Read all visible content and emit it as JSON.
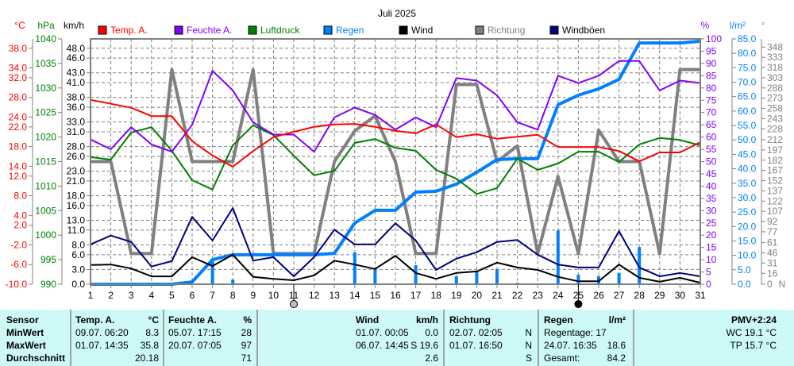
{
  "chart_data": {
    "type": "line",
    "title": "Juli 2025",
    "x": [
      1,
      2,
      3,
      4,
      5,
      6,
      7,
      8,
      9,
      10,
      11,
      12,
      13,
      14,
      15,
      16,
      17,
      18,
      19,
      20,
      21,
      22,
      23,
      24,
      25,
      26,
      27,
      28,
      29,
      30,
      31
    ],
    "axes": {
      "temp": {
        "unit": "°C",
        "range": [
          -10,
          39.9
        ],
        "ticks": [
          "38.0",
          "34.0",
          "32.0",
          "28.0",
          "24.0",
          "22.0",
          "18.0",
          "14.0",
          "12.0",
          "8.0",
          "4.0",
          "2.0",
          "-2.0",
          "-6.0",
          "-10.0"
        ],
        "color": "#ff0000"
      },
      "pressure": {
        "unit": "hPa",
        "range": [
          990,
          1040
        ],
        "ticks": [
          "1040",
          "1035",
          "1030",
          "1025",
          "1020",
          "1015",
          "1010",
          "1005",
          "1000",
          "995",
          "990"
        ],
        "color": "#008000"
      },
      "wind": {
        "unit": "km/h",
        "range": [
          0,
          49.9
        ],
        "ticks": [
          "48.0",
          "46.0",
          "43.0",
          "41.0",
          "38.0",
          "36.0",
          "33.0",
          "31.0",
          "28.0",
          "26.0",
          "23.0",
          "21.0",
          "18.0",
          "16.0",
          "13.0",
          "11.0",
          "8.0",
          "6.0",
          "3.0",
          "0.0"
        ],
        "color": "#000000"
      },
      "humidity": {
        "unit": "%",
        "range": [
          0,
          100
        ],
        "ticks": [
          "100",
          "95",
          "90",
          "85",
          "80",
          "75",
          "70",
          "65",
          "60",
          "55",
          "50",
          "45",
          "40",
          "35",
          "30",
          "25",
          "20",
          "15",
          "10",
          "5",
          "0"
        ],
        "color": "#8000ff"
      },
      "rain": {
        "unit": "l/m²",
        "range": [
          0,
          85
        ],
        "ticks": [
          "85.0",
          "80.0",
          "75.0",
          "70.0",
          "65.0",
          "60.0",
          "55.0",
          "50.0",
          "45.0",
          "40.0",
          "35.0",
          "30.0",
          "25.0",
          "20.0",
          "15.0",
          "10.0",
          "5.0",
          "0.0"
        ],
        "color": "#0080ff"
      },
      "direction": {
        "unit": "°",
        "range": [
          0,
          360
        ],
        "ticks": [
          "348",
          "333",
          "318",
          "303",
          "288",
          "273",
          "258",
          "243",
          "228",
          "212",
          "197",
          "182",
          "167",
          "152",
          "137",
          "122",
          "107",
          "92",
          "77",
          "61",
          "46",
          "31",
          "16",
          "0"
        ],
        "extra_label": "N",
        "color": "#808080"
      }
    },
    "series": [
      {
        "name": "Temp. A.",
        "axis": "temp",
        "color": "#ff0000",
        "width": 2,
        "values": [
          27.5,
          26.7,
          25.9,
          24.2,
          24.2,
          19.1,
          16.2,
          13.9,
          17.1,
          19.9,
          21.0,
          22.0,
          22.5,
          22.6,
          22.0,
          21.2,
          20.7,
          22.5,
          19.9,
          20.5,
          19.6,
          20.0,
          20.4,
          17.9,
          17.9,
          17.9,
          17.1,
          15.0,
          16.8,
          16.8,
          18.9
        ]
      },
      {
        "name": "Feuchte A.",
        "axis": "humidity",
        "color": "#8000ff",
        "width": 2,
        "values": [
          59,
          55,
          64,
          57,
          54,
          65,
          87,
          79,
          66,
          61,
          61,
          54,
          68,
          72,
          69,
          63,
          68,
          64,
          84,
          83,
          77,
          66,
          63,
          85,
          82,
          85,
          91,
          91,
          79,
          83,
          82
        ]
      },
      {
        "name": "Luftdruck",
        "axis": "pressure",
        "color": "#008000",
        "width": 2,
        "values": [
          1015.9,
          1015.4,
          1020.9,
          1022.0,
          1017.2,
          1011.2,
          1009.3,
          1018.3,
          1022.4,
          1020.4,
          1016.2,
          1012.2,
          1013.1,
          1018.8,
          1019.6,
          1017.8,
          1017.2,
          1013.3,
          1011.5,
          1008.4,
          1009.6,
          1015.6,
          1013.3,
          1014.6,
          1017.0,
          1017.0,
          1014.9,
          1018.5,
          1019.8,
          1019.4,
          1018.3
        ]
      },
      {
        "name": "Regen",
        "axis": "rain",
        "color": "#0080ff",
        "width": 4,
        "values": [
          0,
          0,
          0,
          0,
          0,
          0.8,
          8.5,
          10.2,
          10.2,
          10.2,
          10.2,
          10.2,
          10.7,
          21.2,
          25.6,
          25.6,
          31.9,
          32.2,
          34.7,
          38.8,
          43.2,
          43.5,
          43.5,
          62.2,
          65.5,
          67.7,
          71.0,
          83.6,
          83.6,
          83.6,
          84.2
        ]
      },
      {
        "name": "Wind",
        "axis": "wind",
        "color": "#000000",
        "width": 2,
        "values": [
          3.9,
          4.0,
          3.2,
          1.6,
          1.6,
          5.5,
          3.7,
          6.0,
          1.5,
          1.1,
          0.8,
          1.8,
          4.8,
          4.0,
          3.1,
          5.8,
          2.3,
          1.1,
          2.3,
          2.6,
          4.4,
          3.4,
          2.9,
          1.5,
          0.6,
          0.6,
          4.0,
          1.3,
          0.5,
          1.3,
          0.3
        ]
      },
      {
        "name": "Richtung",
        "axis": "direction",
        "color": "#808080",
        "width": 4,
        "values": [
          180,
          180,
          45,
          45,
          315,
          180,
          180,
          180,
          315,
          45,
          45,
          45,
          180,
          225,
          247,
          180,
          45,
          45,
          293,
          293,
          180,
          203,
          45,
          158,
          45,
          226,
          180,
          180,
          45,
          315,
          315
        ]
      },
      {
        "name": "Windböen",
        "axis": "wind",
        "color": "#000080",
        "width": 2,
        "values": [
          8.1,
          9.9,
          8.6,
          3.6,
          4.7,
          13.7,
          8.9,
          15.5,
          4.8,
          5.5,
          1.6,
          5.5,
          11.1,
          8.1,
          8.1,
          12.4,
          8.9,
          2.9,
          5.2,
          6.5,
          8.6,
          9.0,
          6.0,
          4.0,
          3.4,
          3.4,
          10.8,
          3.4,
          1.6,
          2.3,
          1.6
        ]
      }
    ],
    "rain_bars": {
      "name": "Regen (täglich)",
      "axis": "rain",
      "color": "#0080ff",
      "days": [
        7,
        8,
        14,
        15,
        17,
        19,
        20,
        21,
        22,
        24,
        25,
        26,
        27,
        28
      ],
      "values": [
        8.8,
        1.6,
        11.0,
        5.2,
        6.6,
        2.8,
        4.7,
        5.2,
        0.5,
        18.6,
        3.3,
        2.8,
        3.9,
        12.9
      ]
    },
    "moon_phases": [
      {
        "day": 11,
        "phase": "full-moon"
      },
      {
        "day": 25,
        "phase": "new-moon"
      }
    ],
    "legend": [
      "Temp. A.",
      "Feuchte A.",
      "Luftdruck",
      "Regen",
      "Wind",
      "Richtung",
      "Windböen"
    ],
    "legend_placement": "top",
    "grid": true
  },
  "table": {
    "sensor": {
      "header": "Sensor",
      "rows": [
        "MinWert",
        "MaxWert",
        "Durchschnitt"
      ]
    },
    "temp": {
      "header": "Temp. A.",
      "unit": "°C",
      "min_time": "09.07.  06:20",
      "min": "8.3",
      "max_time": "01.07.  14:35",
      "max": "35.8",
      "avg": "20.18"
    },
    "humidity": {
      "header": "Feuchte A.",
      "unit": "%",
      "min_time": "05.07.  17:15",
      "min": "28",
      "max_time": "20.07.  07:05",
      "max": "97",
      "avg": "71"
    },
    "wind": {
      "header": "Wind",
      "unit": "km/h",
      "min_time": "01.07.  00:05",
      "min": "0.0",
      "max_time": "06.07.  14:45",
      "max": "S 19.6",
      "avg": "2.6"
    },
    "direction": {
      "header": "Richtung",
      "min_time": "02.07.  02:05",
      "min": "N",
      "max_time": "01.07.  16:50",
      "max": "N",
      "avg": "S"
    },
    "rain": {
      "header": "Regen",
      "unit": "l/m²",
      "days": "Regentage: 17",
      "max_time": "24.07.  16:35",
      "max": "18.6",
      "total_label": "Gesamt:",
      "total": "84.2"
    },
    "extra": {
      "pmv": "PMV+2:24",
      "wc": "WC 19.1 °C",
      "tp": "TP 15.7 °C"
    }
  }
}
